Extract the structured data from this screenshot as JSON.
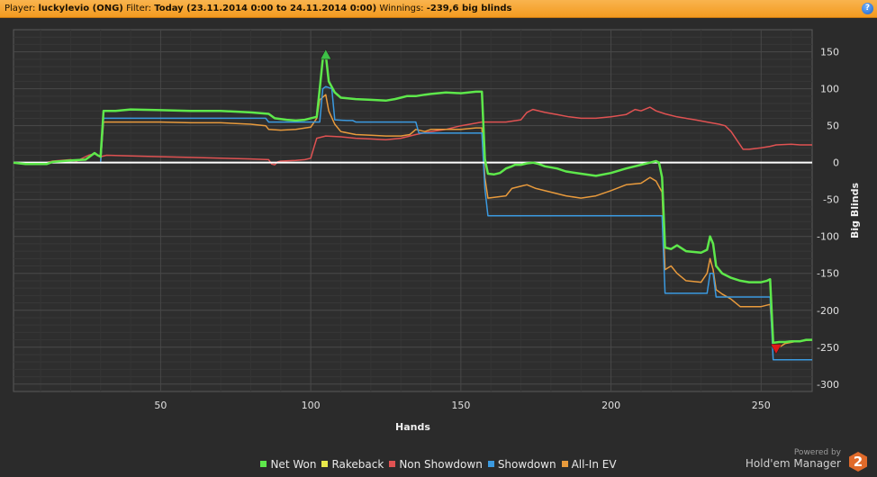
{
  "header": {
    "player_label": "Player:",
    "player_value": "luckylevio (ONG)",
    "filter_label": "Filter:",
    "filter_value": "Today (23.11.2014 0:00 to 24.11.2014 0:00)",
    "winnings_label": "Winnings:",
    "winnings_value": "-239,6 big blinds",
    "help_glyph": "?"
  },
  "branding": {
    "powered_by": "Powered by",
    "product": "Hold'em Manager",
    "logo_digit": "2"
  },
  "colors": {
    "header": "#f7a636",
    "plot_background": "#2e2e2e",
    "zero_line": "#ffffff",
    "logo": "#e06a2a"
  },
  "chart_data": {
    "type": "line",
    "xlabel": "Hands",
    "ylabel": "Big Blinds",
    "xlim": [
      1,
      267
    ],
    "ylim": [
      -310,
      180
    ],
    "x_ticks": [
      50,
      100,
      150,
      200,
      250
    ],
    "y_ticks": [
      150,
      100,
      50,
      0,
      -50,
      -100,
      -150,
      -200,
      -250,
      -300
    ],
    "grid": true,
    "legend_position": "bottom",
    "series": [
      {
        "name": "Net Won",
        "color": "#5ee84b",
        "points": [
          [
            1,
            0
          ],
          [
            5,
            -2
          ],
          [
            12,
            -2
          ],
          [
            14,
            1
          ],
          [
            20,
            3
          ],
          [
            25,
            4
          ],
          [
            27,
            10
          ],
          [
            28,
            13
          ],
          [
            29,
            10
          ],
          [
            30,
            8
          ],
          [
            31,
            70
          ],
          [
            35,
            70
          ],
          [
            40,
            72
          ],
          [
            50,
            71
          ],
          [
            60,
            70
          ],
          [
            70,
            70
          ],
          [
            80,
            68
          ],
          [
            86,
            66
          ],
          [
            88,
            60
          ],
          [
            92,
            58
          ],
          [
            95,
            57
          ],
          [
            98,
            58
          ],
          [
            100,
            60
          ],
          [
            102,
            62
          ],
          [
            103,
            100
          ],
          [
            104,
            140
          ],
          [
            105,
            146
          ],
          [
            106,
            110
          ],
          [
            108,
            95
          ],
          [
            110,
            88
          ],
          [
            115,
            86
          ],
          [
            120,
            85
          ],
          [
            125,
            84
          ],
          [
            128,
            86
          ],
          [
            130,
            88
          ],
          [
            132,
            90
          ],
          [
            135,
            90
          ],
          [
            138,
            92
          ],
          [
            140,
            93
          ],
          [
            145,
            95
          ],
          [
            150,
            94
          ],
          [
            155,
            96
          ],
          [
            157,
            96
          ],
          [
            158,
            5
          ],
          [
            159,
            -15
          ],
          [
            161,
            -16
          ],
          [
            163,
            -14
          ],
          [
            165,
            -8
          ],
          [
            167,
            -5
          ],
          [
            168,
            -3
          ],
          [
            170,
            -3
          ],
          [
            172,
            -1
          ],
          [
            174,
            0
          ],
          [
            176,
            -2
          ],
          [
            178,
            -5
          ],
          [
            182,
            -8
          ],
          [
            185,
            -12
          ],
          [
            190,
            -15
          ],
          [
            195,
            -18
          ],
          [
            200,
            -14
          ],
          [
            205,
            -8
          ],
          [
            210,
            -3
          ],
          [
            213,
            0
          ],
          [
            215,
            2
          ],
          [
            216,
            0
          ],
          [
            217,
            -20
          ],
          [
            218,
            -115
          ],
          [
            220,
            -117
          ],
          [
            222,
            -112
          ],
          [
            225,
            -120
          ],
          [
            230,
            -122
          ],
          [
            232,
            -118
          ],
          [
            233,
            -100
          ],
          [
            234,
            -110
          ],
          [
            235,
            -140
          ],
          [
            237,
            -150
          ],
          [
            240,
            -156
          ],
          [
            243,
            -160
          ],
          [
            246,
            -162
          ],
          [
            250,
            -162
          ],
          [
            252,
            -160
          ],
          [
            253,
            -158
          ],
          [
            254,
            -244
          ],
          [
            256,
            -243
          ],
          [
            258,
            -243
          ],
          [
            260,
            -242
          ],
          [
            263,
            -242
          ],
          [
            265,
            -240
          ],
          [
            267,
            -240
          ]
        ]
      },
      {
        "name": "Rakeback",
        "color": "#e8e84b",
        "points": []
      },
      {
        "name": "Non Showdown",
        "color": "#e05252",
        "points": [
          [
            1,
            0
          ],
          [
            5,
            -2
          ],
          [
            10,
            -2
          ],
          [
            14,
            2
          ],
          [
            20,
            4
          ],
          [
            22,
            2
          ],
          [
            26,
            10
          ],
          [
            28,
            12
          ],
          [
            30,
            8
          ],
          [
            32,
            10
          ],
          [
            40,
            9
          ],
          [
            50,
            8
          ],
          [
            60,
            7
          ],
          [
            70,
            6
          ],
          [
            80,
            5
          ],
          [
            86,
            4
          ],
          [
            87,
            -2
          ],
          [
            88,
            -3
          ],
          [
            89,
            1
          ],
          [
            90,
            2
          ],
          [
            95,
            3
          ],
          [
            98,
            4
          ],
          [
            100,
            6
          ],
          [
            101,
            20
          ],
          [
            102,
            33
          ],
          [
            105,
            36
          ],
          [
            110,
            35
          ],
          [
            115,
            33
          ],
          [
            120,
            32
          ],
          [
            125,
            31
          ],
          [
            130,
            33
          ],
          [
            135,
            38
          ],
          [
            140,
            42
          ],
          [
            145,
            45
          ],
          [
            150,
            50
          ],
          [
            153,
            52
          ],
          [
            157,
            55
          ],
          [
            160,
            55
          ],
          [
            165,
            55
          ],
          [
            170,
            58
          ],
          [
            172,
            68
          ],
          [
            174,
            72
          ],
          [
            178,
            68
          ],
          [
            182,
            65
          ],
          [
            186,
            62
          ],
          [
            190,
            60
          ],
          [
            195,
            60
          ],
          [
            200,
            62
          ],
          [
            205,
            65
          ],
          [
            208,
            72
          ],
          [
            210,
            70
          ],
          [
            213,
            75
          ],
          [
            215,
            70
          ],
          [
            218,
            66
          ],
          [
            222,
            62
          ],
          [
            228,
            58
          ],
          [
            232,
            55
          ],
          [
            236,
            52
          ],
          [
            238,
            50
          ],
          [
            240,
            42
          ],
          [
            242,
            30
          ],
          [
            244,
            18
          ],
          [
            246,
            18
          ],
          [
            250,
            20
          ],
          [
            253,
            22
          ],
          [
            255,
            24
          ],
          [
            260,
            25
          ],
          [
            263,
            24
          ],
          [
            267,
            24
          ]
        ]
      },
      {
        "name": "Showdown",
        "color": "#3b9ae0",
        "points": [
          [
            1,
            0
          ],
          [
            30,
            0
          ],
          [
            31,
            60
          ],
          [
            35,
            60
          ],
          [
            50,
            60
          ],
          [
            70,
            60
          ],
          [
            80,
            60
          ],
          [
            85,
            60
          ],
          [
            86,
            55
          ],
          [
            100,
            55
          ],
          [
            103,
            55
          ],
          [
            104,
            100
          ],
          [
            105,
            103
          ],
          [
            107,
            100
          ],
          [
            108,
            58
          ],
          [
            112,
            57
          ],
          [
            114,
            57
          ],
          [
            115,
            55
          ],
          [
            130,
            55
          ],
          [
            135,
            55
          ],
          [
            136,
            40
          ],
          [
            140,
            40
          ],
          [
            150,
            40
          ],
          [
            157,
            40
          ],
          [
            158,
            -35
          ],
          [
            159,
            -72
          ],
          [
            165,
            -72
          ],
          [
            180,
            -72
          ],
          [
            200,
            -72
          ],
          [
            216,
            -72
          ],
          [
            217,
            -72
          ],
          [
            218,
            -177
          ],
          [
            225,
            -177
          ],
          [
            232,
            -177
          ],
          [
            233,
            -150
          ],
          [
            234,
            -150
          ],
          [
            235,
            -182
          ],
          [
            240,
            -182
          ],
          [
            252,
            -182
          ],
          [
            253,
            -182
          ],
          [
            254,
            -267
          ],
          [
            260,
            -267
          ],
          [
            267,
            -267
          ]
        ]
      },
      {
        "name": "All-In EV",
        "color": "#e89a3c",
        "points": [
          [
            1,
            0
          ],
          [
            30,
            0
          ],
          [
            31,
            55
          ],
          [
            35,
            55
          ],
          [
            50,
            55
          ],
          [
            60,
            54
          ],
          [
            70,
            54
          ],
          [
            80,
            52
          ],
          [
            85,
            50
          ],
          [
            86,
            45
          ],
          [
            90,
            44
          ],
          [
            95,
            45
          ],
          [
            100,
            48
          ],
          [
            102,
            60
          ],
          [
            103,
            85
          ],
          [
            105,
            92
          ],
          [
            106,
            70
          ],
          [
            108,
            52
          ],
          [
            110,
            42
          ],
          [
            115,
            38
          ],
          [
            120,
            37
          ],
          [
            125,
            36
          ],
          [
            130,
            36
          ],
          [
            133,
            38
          ],
          [
            135,
            45
          ],
          [
            138,
            42
          ],
          [
            140,
            45
          ],
          [
            145,
            45
          ],
          [
            150,
            45
          ],
          [
            155,
            47
          ],
          [
            157,
            47
          ],
          [
            158,
            -20
          ],
          [
            159,
            -48
          ],
          [
            165,
            -45
          ],
          [
            167,
            -35
          ],
          [
            170,
            -32
          ],
          [
            172,
            -30
          ],
          [
            175,
            -35
          ],
          [
            180,
            -40
          ],
          [
            185,
            -45
          ],
          [
            190,
            -48
          ],
          [
            195,
            -45
          ],
          [
            200,
            -38
          ],
          [
            205,
            -30
          ],
          [
            210,
            -28
          ],
          [
            213,
            -20
          ],
          [
            215,
            -25
          ],
          [
            217,
            -40
          ],
          [
            218,
            -145
          ],
          [
            220,
            -140
          ],
          [
            222,
            -150
          ],
          [
            225,
            -160
          ],
          [
            230,
            -162
          ],
          [
            232,
            -150
          ],
          [
            233,
            -130
          ],
          [
            234,
            -145
          ],
          [
            235,
            -172
          ],
          [
            237,
            -178
          ],
          [
            240,
            -185
          ],
          [
            243,
            -195
          ],
          [
            250,
            -195
          ],
          [
            253,
            -192
          ],
          [
            254,
            -250
          ],
          [
            256,
            -250
          ],
          [
            258,
            -245
          ],
          [
            262,
            -242
          ],
          [
            267,
            -240
          ]
        ]
      }
    ],
    "markers": [
      {
        "type": "max",
        "x": 105,
        "y": 146,
        "color": "#3ec247"
      },
      {
        "type": "min",
        "x": 255,
        "y": -252,
        "color": "#e01818"
      }
    ]
  }
}
